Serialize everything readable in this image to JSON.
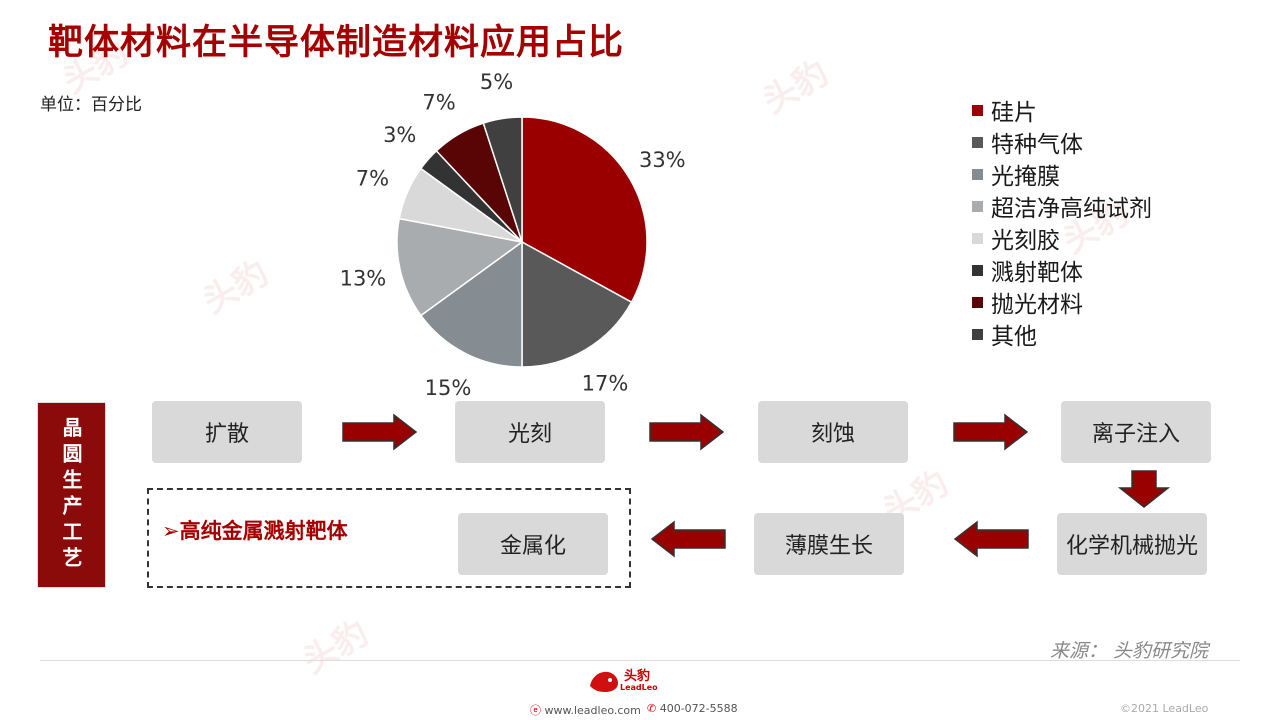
{
  "title": "靶体材料在半导体制造材料应用占比",
  "unit": "单位：百分比",
  "chart_data": {
    "type": "pie",
    "title": "",
    "categories": [
      "硅片",
      "特种气体",
      "光掩膜",
      "超洁净高纯试剂",
      "光刻胶",
      "溅射靶体",
      "抛光材料",
      "其他"
    ],
    "values": [
      33,
      17,
      15,
      13,
      7,
      3,
      7,
      5
    ],
    "value_labels": [
      "33%",
      "17%",
      "15%",
      "13%",
      "7%",
      "3%",
      "7%",
      "5%"
    ],
    "colors": [
      "#9b0000",
      "#595959",
      "#858d93",
      "#a9acae",
      "#d9d9d9",
      "#333333",
      "#5a0505",
      "#404040"
    ],
    "start_angle": "12 o'clock",
    "direction": "clockwise",
    "legend": "right"
  },
  "process": {
    "side_label": "晶圆生产工艺",
    "steps": [
      "扩散",
      "光刻",
      "刻蚀",
      "离子注入",
      "化学机械抛光",
      "薄膜生长",
      "金属化"
    ],
    "highlight": "➢高纯金属溅射靶体"
  },
  "source": "来源：  头豹研究院",
  "footer": {
    "brand": "头豹",
    "brand_sub": "LeadLeo",
    "website": "www.leadleo.com",
    "phone": "400-072-5588",
    "copyright": "©2021 LeadLeo"
  },
  "colors": {
    "accent": "#a50000",
    "step_bg": "#d9d9d9",
    "side_bg": "#8b0a0a"
  }
}
